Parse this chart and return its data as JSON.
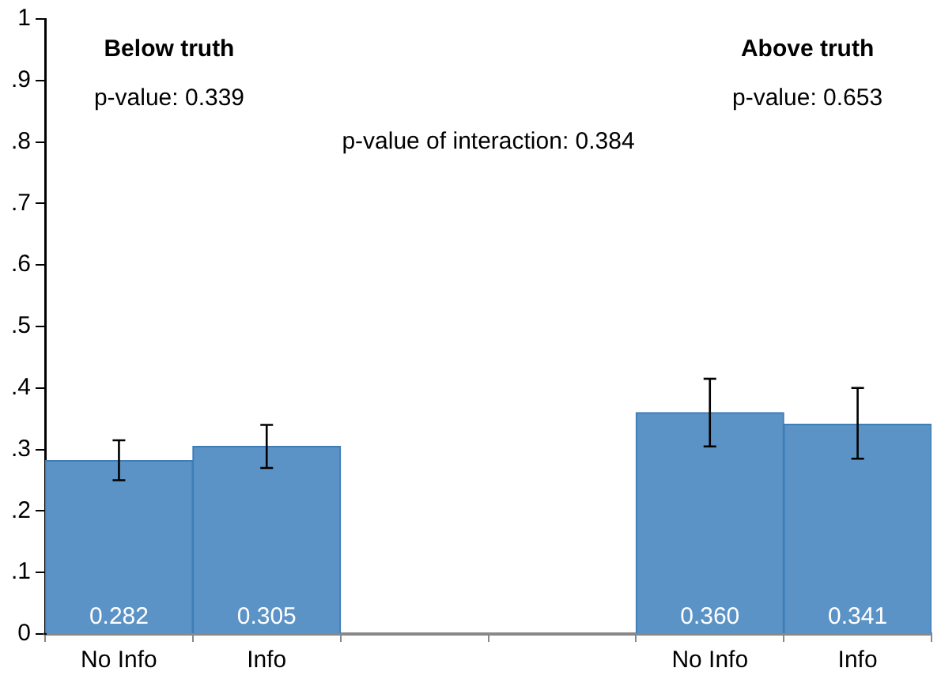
{
  "chart_data": {
    "type": "bar",
    "categories": [
      "No Info",
      "Info",
      null,
      null,
      "No Info",
      "Info"
    ],
    "values": [
      0.282,
      0.305,
      null,
      null,
      0.36,
      0.341
    ],
    "value_labels": [
      "0.282",
      "0.305",
      null,
      null,
      "0.360",
      "0.341"
    ],
    "errors": [
      [
        0.25,
        0.315
      ],
      [
        0.27,
        0.34
      ],
      null,
      null,
      [
        0.305,
        0.415
      ],
      [
        0.285,
        0.4
      ]
    ],
    "color": "#5b93c6",
    "ylim": [
      0,
      1
    ],
    "yticks": [
      0,
      {
        "value": 0.1,
        "label": ".1"
      },
      {
        "value": 0.2,
        "label": ".2"
      },
      {
        "value": 0.3,
        "label": ".3"
      },
      {
        "value": 0.4,
        "label": ".4"
      },
      {
        "value": 0.5,
        "label": ".5"
      },
      {
        "value": 0.6,
        "label": ".6"
      },
      {
        "value": 0.7,
        "label": ".7"
      },
      {
        "value": 0.8,
        "label": ".8"
      },
      {
        "value": 0.9,
        "label": ".9"
      },
      1
    ],
    "annotations": [
      "Below truth",
      "p-value: 0.339",
      "Above truth",
      "p-value: 0.653",
      "p-value of interaction: 0.384"
    ],
    "grid": false,
    "legend": false
  }
}
